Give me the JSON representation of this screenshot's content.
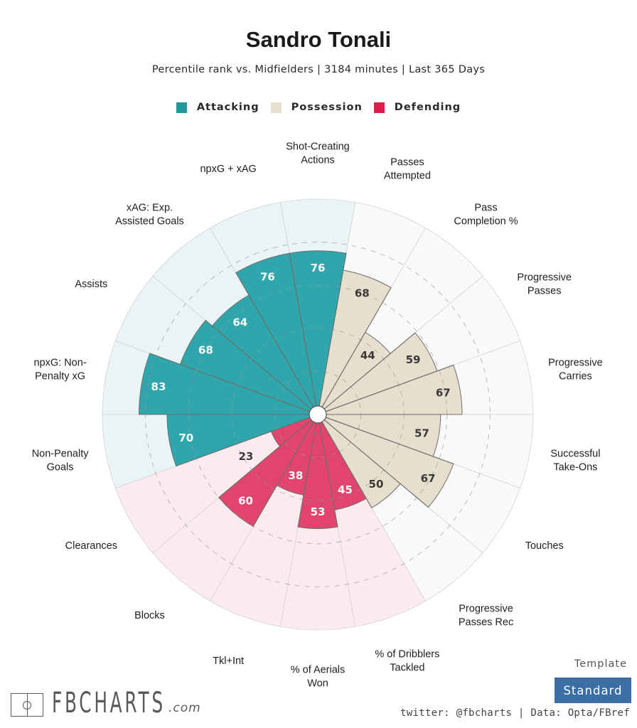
{
  "header": {
    "title": "Sandro Tonali",
    "subtitle": "Percentile rank vs. Midfielders | 3184 minutes | Last 365 Days"
  },
  "legend": [
    {
      "label": "Attacking",
      "color": "#1e9a9d"
    },
    {
      "label": "Possession",
      "color": "#e8e0cf"
    },
    {
      "label": "Defending",
      "color": "#dc1f4a"
    }
  ],
  "footer": {
    "logo_text": "FBCHARTS",
    "logo_suffix": ".com",
    "template_label": "Template",
    "template_value": "Standard",
    "credits": "twitter: @fbcharts | Data: Opta/FBref"
  },
  "chart_data": {
    "type": "polar-bar",
    "title": "Sandro Tonali",
    "subtitle": "Percentile rank vs. Midfielders | 3184 minutes | Last 365 Days",
    "rlim": [
      0,
      100
    ],
    "gridlines": [
      20,
      40,
      60,
      80
    ],
    "start": "top",
    "direction": "clockwise",
    "legend_position": "top-center",
    "groups": {
      "Attacking": {
        "bar": "#2ea6ab",
        "background": "#e8f4f5",
        "text": "#ffffff"
      },
      "Possession": {
        "bar": "#e6dfce",
        "background": "#f9f9f9",
        "text": "#3a3a3a"
      },
      "Defending": {
        "bar": "#e1446c",
        "background": "#fbebee",
        "text": "#ffffff"
      }
    },
    "categories": [
      {
        "label": "Shot-Creating\nActions",
        "value": 76,
        "group": "Attacking"
      },
      {
        "label": "Passes\nAttempted",
        "value": 68,
        "group": "Possession"
      },
      {
        "label": "Pass\nCompletion %",
        "value": 44,
        "group": "Possession"
      },
      {
        "label": "Progressive\nPasses",
        "value": 59,
        "group": "Possession"
      },
      {
        "label": "Progressive\nCarries",
        "value": 67,
        "group": "Possession"
      },
      {
        "label": "Successful\nTake-Ons",
        "value": 57,
        "group": "Possession"
      },
      {
        "label": "Touches",
        "value": 67,
        "group": "Possession"
      },
      {
        "label": "Progressive\nPasses Rec",
        "value": 50,
        "group": "Possession"
      },
      {
        "label": "% of Dribblers\nTackled",
        "value": 45,
        "group": "Defending"
      },
      {
        "label": "% of Aerials\nWon",
        "value": 53,
        "group": "Defending"
      },
      {
        "label": "Tkl+Int",
        "value": 38,
        "group": "Defending"
      },
      {
        "label": "Blocks",
        "value": 60,
        "group": "Defending"
      },
      {
        "label": "Clearances",
        "value": 23,
        "group": "Defending"
      },
      {
        "label": "Non-Penalty\nGoals",
        "value": 70,
        "group": "Attacking"
      },
      {
        "label": "npxG: Non-\nPenalty xG",
        "value": 83,
        "group": "Attacking"
      },
      {
        "label": "Assists",
        "value": 68,
        "group": "Attacking"
      },
      {
        "label": "xAG: Exp.\nAssisted Goals",
        "value": 64,
        "group": "Attacking"
      },
      {
        "label": "npxG + xAG",
        "value": 76,
        "group": "Attacking"
      }
    ]
  }
}
